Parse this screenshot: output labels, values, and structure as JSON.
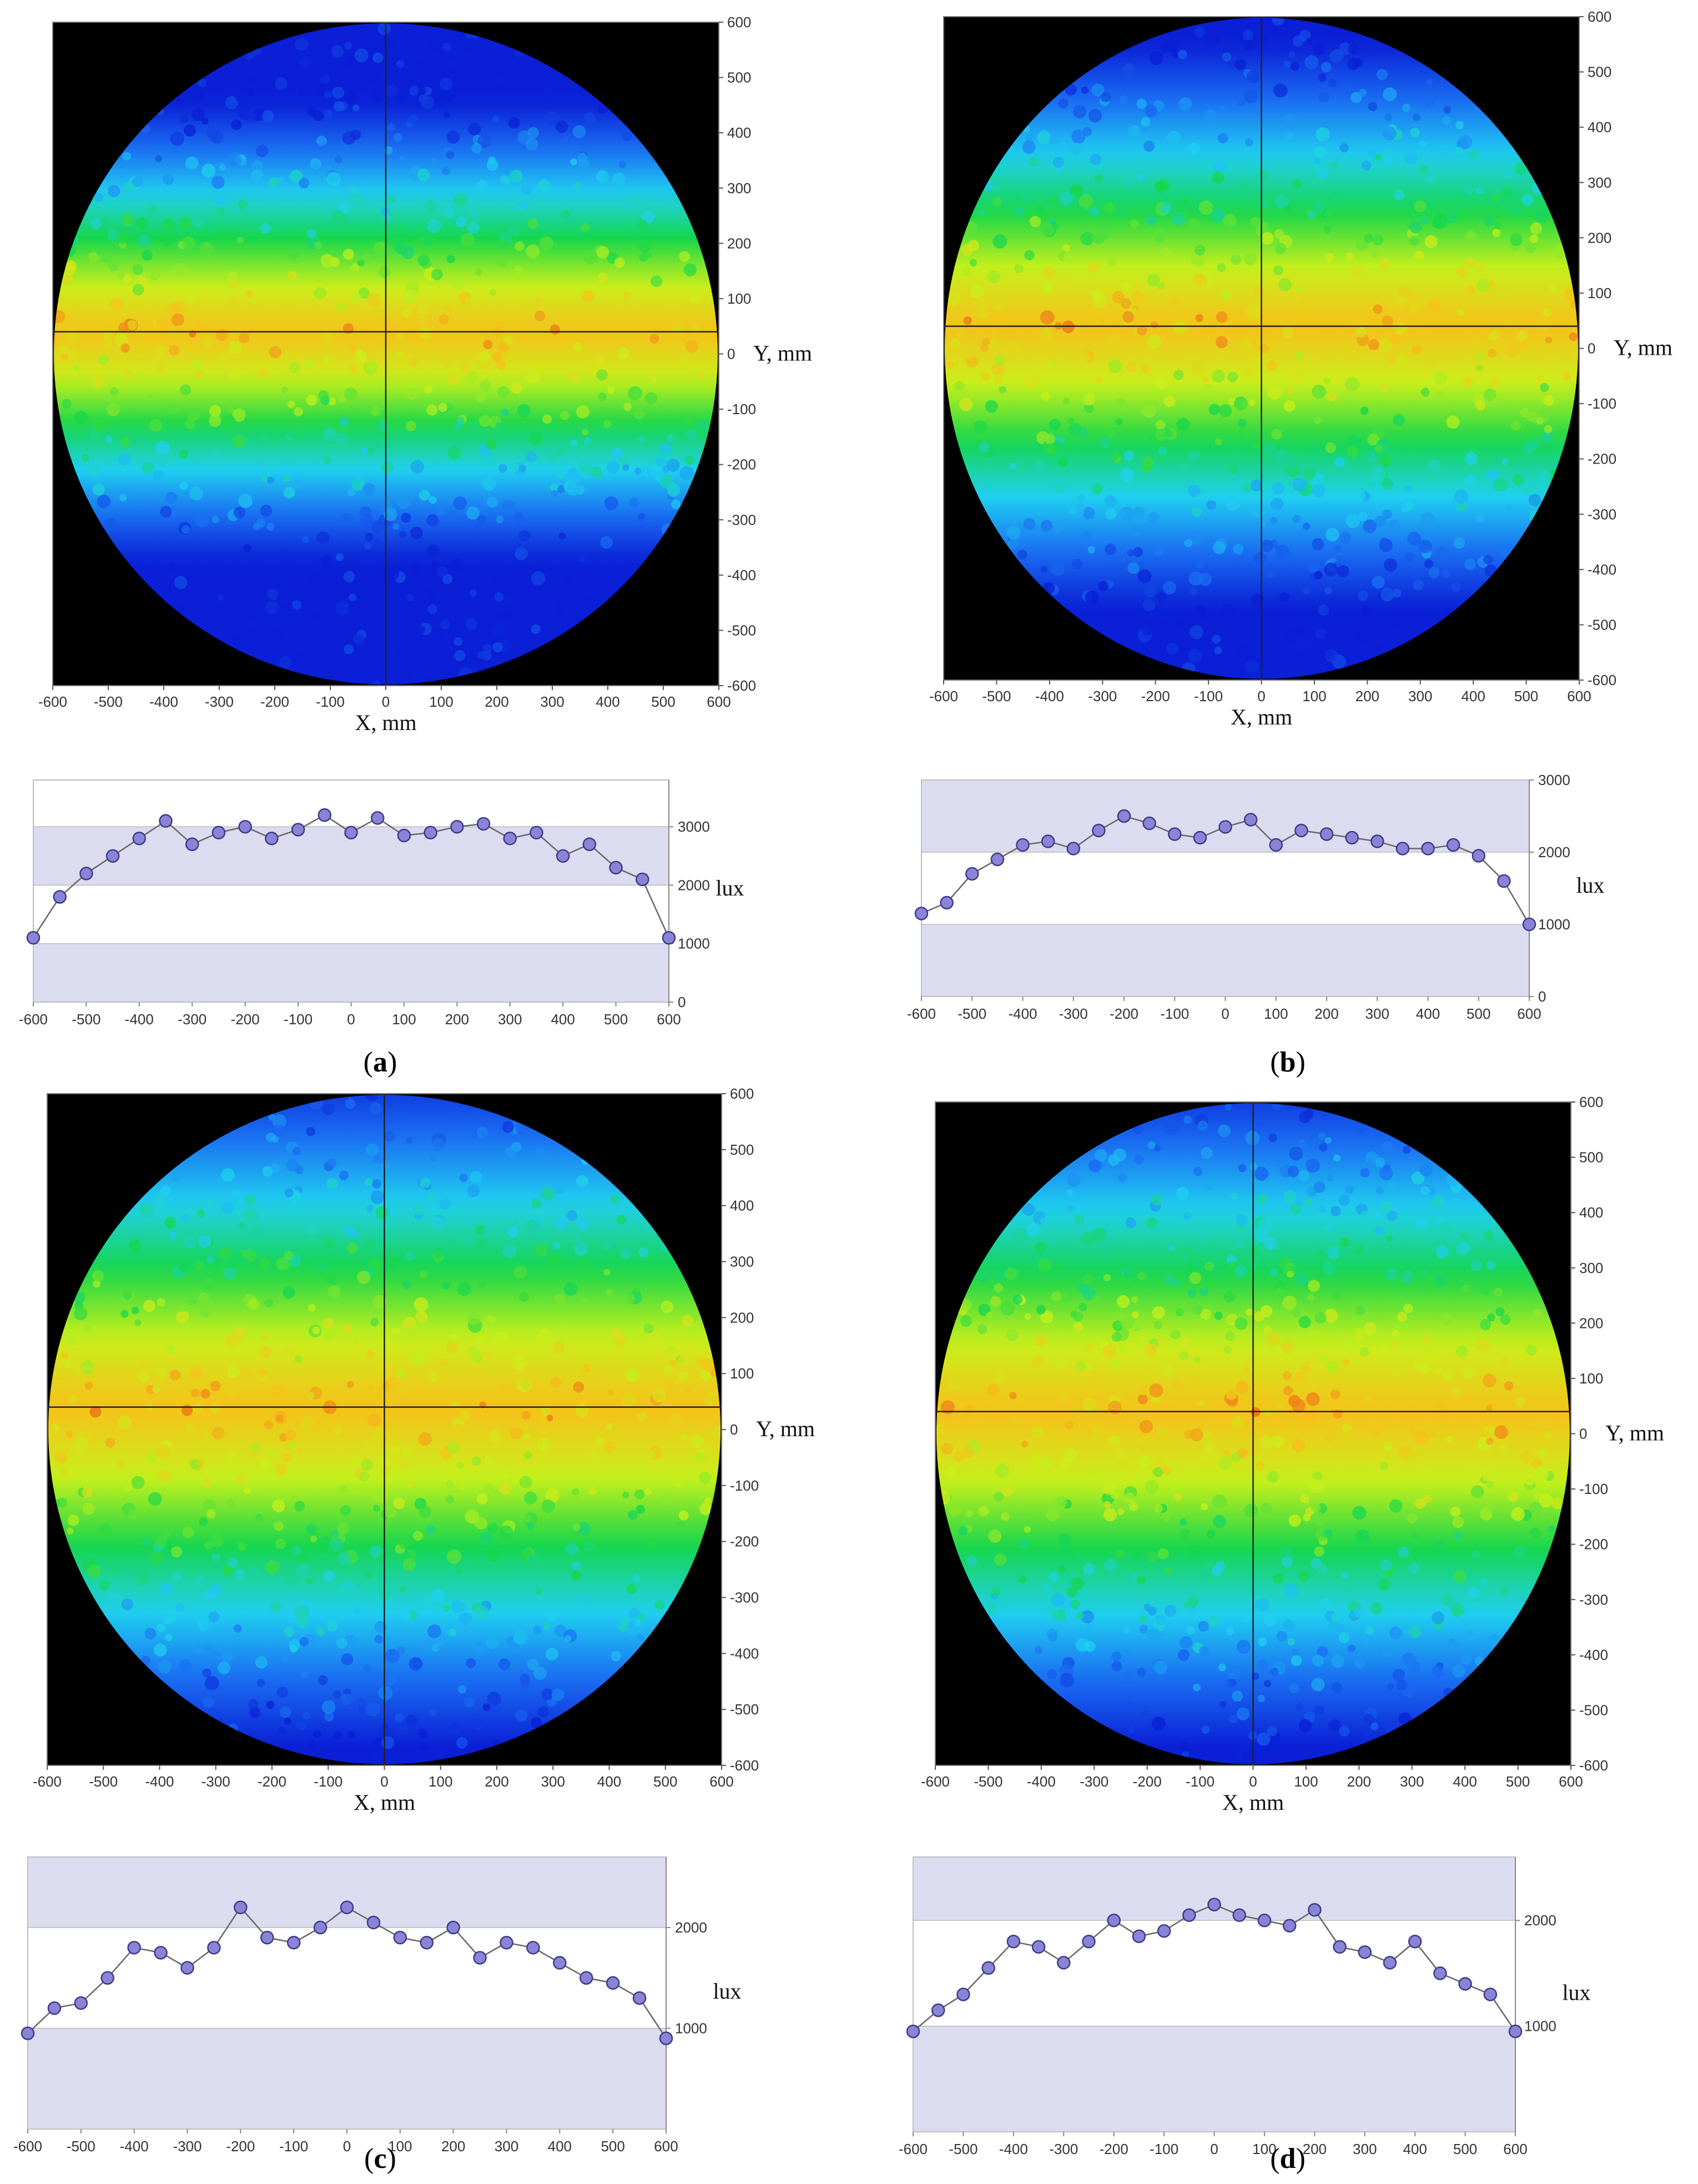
{
  "panels": [
    {
      "label": "a",
      "heatmap": {
        "x_label": "X, mm",
        "y_label": "Y, mm",
        "x_ticks": [
          "-600",
          "-500",
          "-400",
          "-300",
          "-200",
          "-100",
          "0",
          "100",
          "200",
          "300",
          "400",
          "500",
          "600"
        ],
        "y_ticks": [
          "600",
          "500",
          "400",
          "300",
          "200",
          "100",
          "0",
          "-100",
          "-200",
          "-300",
          "-400",
          "-500",
          "-600"
        ]
      },
      "profile": {
        "y_unit": "lux",
        "y_ticks": [
          "3000",
          "2000",
          "1000",
          "0"
        ],
        "x_ticks": [
          "-600",
          "-500",
          "-400",
          "-300",
          "-200",
          "-100",
          "0",
          "100",
          "200",
          "300",
          "400",
          "500",
          "600"
        ]
      }
    },
    {
      "label": "b",
      "heatmap": {
        "x_label": "X, mm",
        "y_label": "Y, mm",
        "x_ticks": [
          "-600",
          "-500",
          "-400",
          "-300",
          "-200",
          "-100",
          "0",
          "100",
          "200",
          "300",
          "400",
          "500",
          "600"
        ],
        "y_ticks": [
          "600",
          "500",
          "400",
          "300",
          "200",
          "100",
          "0",
          "-100",
          "-200",
          "-300",
          "-400",
          "-500",
          "-600"
        ]
      },
      "profile": {
        "y_unit": "lux",
        "y_ticks": [
          "3000",
          "2000",
          "1000",
          "0"
        ],
        "x_ticks": [
          "-600",
          "-500",
          "-400",
          "-300",
          "-200",
          "-100",
          "0",
          "100",
          "200",
          "300",
          "400",
          "500",
          "600"
        ]
      }
    },
    {
      "label": "c",
      "heatmap": {
        "x_label": "X, mm",
        "y_label": "Y, mm",
        "x_ticks": [
          "-600",
          "-500",
          "-400",
          "-300",
          "-200",
          "-100",
          "0",
          "100",
          "200",
          "300",
          "400",
          "500",
          "600"
        ],
        "y_ticks": [
          "600",
          "500",
          "400",
          "300",
          "200",
          "100",
          "0",
          "-100",
          "-200",
          "-300",
          "-400",
          "-500",
          "-600"
        ]
      },
      "profile": {
        "y_unit": "lux",
        "y_ticks": [
          "2000",
          "1000"
        ],
        "x_ticks": [
          "-600",
          "-500",
          "-400",
          "-300",
          "-200",
          "-100",
          "0",
          "100",
          "200",
          "300",
          "400",
          "500",
          "600"
        ]
      }
    },
    {
      "label": "d",
      "heatmap": {
        "x_label": "X, mm",
        "y_label": "Y, mm",
        "x_ticks": [
          "-600",
          "-500",
          "-400",
          "-300",
          "-200",
          "-100",
          "0",
          "100",
          "200",
          "300",
          "400",
          "500",
          "600"
        ],
        "y_ticks": [
          "600",
          "500",
          "400",
          "300",
          "200",
          "100",
          "0",
          "-100",
          "-200",
          "-300",
          "-400",
          "-500",
          "-600"
        ]
      },
      "profile": {
        "y_unit": "lux",
        "y_ticks": [
          "2000",
          "1000"
        ],
        "x_ticks": [
          "-600",
          "-500",
          "-400",
          "-300",
          "-200",
          "-100",
          "0",
          "100",
          "200",
          "300",
          "400",
          "500",
          "600"
        ]
      }
    }
  ],
  "chart_data": [
    {
      "type": "heatmap",
      "panel": "a",
      "xlabel": "X, mm",
      "ylabel": "Y, mm",
      "xlim": [
        -600,
        600
      ],
      "ylim": [
        -600,
        600
      ],
      "shape": "circle",
      "radius": 600,
      "peak_band_y": 40,
      "band_half_width": 260,
      "colormap": [
        "#0a1fd6",
        "#1a6df2",
        "#1fd0f0",
        "#16d64a",
        "#c8f01a",
        "#f5c21a",
        "#e8301a"
      ]
    },
    {
      "type": "line",
      "panel": "a",
      "ylabel": "lux",
      "xlim": [
        -600,
        600
      ],
      "ylim": [
        0,
        3800
      ],
      "bands": [
        [
          1000,
          0
        ],
        [
          3000,
          2000
        ]
      ],
      "x": [
        -600,
        -550,
        -500,
        -450,
        -400,
        -350,
        -300,
        -250,
        -200,
        -150,
        -100,
        -50,
        0,
        50,
        100,
        150,
        200,
        250,
        300,
        350,
        400,
        450,
        500,
        550,
        600
      ],
      "values": [
        1100,
        1800,
        2200,
        2500,
        2800,
        3100,
        2700,
        2900,
        3000,
        2800,
        2950,
        3200,
        2900,
        3150,
        2850,
        2900,
        3000,
        3050,
        2800,
        2900,
        2500,
        2700,
        2300,
        2100,
        1100
      ]
    },
    {
      "type": "heatmap",
      "panel": "b",
      "xlabel": "X, mm",
      "ylabel": "Y, mm",
      "xlim": [
        -600,
        600
      ],
      "ylim": [
        -600,
        600
      ],
      "shape": "circle",
      "radius": 600,
      "peak_band_y": 40,
      "band_half_width": 320,
      "colormap": [
        "#0a1fd6",
        "#1a6df2",
        "#1fd0f0",
        "#16d64a",
        "#c8f01a",
        "#f5c21a",
        "#e8301a"
      ]
    },
    {
      "type": "line",
      "panel": "b",
      "ylabel": "lux",
      "xlim": [
        -600,
        600
      ],
      "ylim": [
        0,
        3000
      ],
      "bands": [
        [
          1000,
          0
        ],
        [
          3000,
          2000
        ]
      ],
      "x": [
        -600,
        -550,
        -500,
        -450,
        -400,
        -350,
        -300,
        -250,
        -200,
        -150,
        -100,
        -50,
        0,
        50,
        100,
        150,
        200,
        250,
        300,
        350,
        400,
        450,
        500,
        550,
        600
      ],
      "values": [
        1150,
        1300,
        1700,
        1900,
        2100,
        2150,
        2050,
        2300,
        2500,
        2400,
        2250,
        2200,
        2350,
        2450,
        2100,
        2300,
        2250,
        2200,
        2150,
        2050,
        2050,
        2100,
        1950,
        1600,
        1000
      ]
    },
    {
      "type": "heatmap",
      "panel": "c",
      "xlabel": "X, mm",
      "ylabel": "Y, mm",
      "xlim": [
        -600,
        600
      ],
      "ylim": [
        -600,
        600
      ],
      "shape": "circle",
      "radius": 600,
      "peak_band_y": 40,
      "band_half_width": 380,
      "colormap": [
        "#0a1fd6",
        "#1a6df2",
        "#1fd0f0",
        "#16d64a",
        "#c8f01a",
        "#f5c21a",
        "#e8301a"
      ]
    },
    {
      "type": "line",
      "panel": "c",
      "ylabel": "lux",
      "xlim": [
        -600,
        600
      ],
      "ylim": [
        0,
        2700
      ],
      "bands": [
        [
          1000,
          0
        ],
        [
          2700,
          2000
        ]
      ],
      "x": [
        -600,
        -550,
        -500,
        -450,
        -400,
        -350,
        -300,
        -250,
        -200,
        -150,
        -100,
        -50,
        0,
        50,
        100,
        150,
        200,
        250,
        300,
        350,
        400,
        450,
        500,
        550,
        600
      ],
      "values": [
        950,
        1200,
        1250,
        1500,
        1800,
        1750,
        1600,
        1800,
        2200,
        1900,
        1850,
        2000,
        2200,
        2050,
        1900,
        1850,
        2000,
        1700,
        1850,
        1800,
        1650,
        1500,
        1450,
        1300,
        900
      ]
    },
    {
      "type": "heatmap",
      "panel": "d",
      "xlabel": "X, mm",
      "ylabel": "Y, mm",
      "xlim": [
        -600,
        600
      ],
      "ylim": [
        -600,
        600
      ],
      "shape": "circle",
      "radius": 600,
      "peak_band_y": 40,
      "band_half_width": 380,
      "colormap": [
        "#0a1fd6",
        "#1a6df2",
        "#1fd0f0",
        "#16d64a",
        "#c8f01a",
        "#f5c21a",
        "#e8301a"
      ]
    },
    {
      "type": "line",
      "panel": "d",
      "ylabel": "lux",
      "xlim": [
        -600,
        600
      ],
      "ylim": [
        0,
        2600
      ],
      "bands": [
        [
          1000,
          0
        ],
        [
          2600,
          2000
        ]
      ],
      "x": [
        -600,
        -550,
        -500,
        -450,
        -400,
        -350,
        -300,
        -250,
        -200,
        -150,
        -100,
        -50,
        0,
        50,
        100,
        150,
        200,
        250,
        300,
        350,
        400,
        450,
        500,
        550,
        600
      ],
      "values": [
        950,
        1150,
        1300,
        1550,
        1800,
        1750,
        1600,
        1800,
        2000,
        1850,
        1900,
        2050,
        2150,
        2050,
        2000,
        1950,
        2100,
        1750,
        1700,
        1600,
        1800,
        1500,
        1400,
        1300,
        950
      ]
    }
  ]
}
